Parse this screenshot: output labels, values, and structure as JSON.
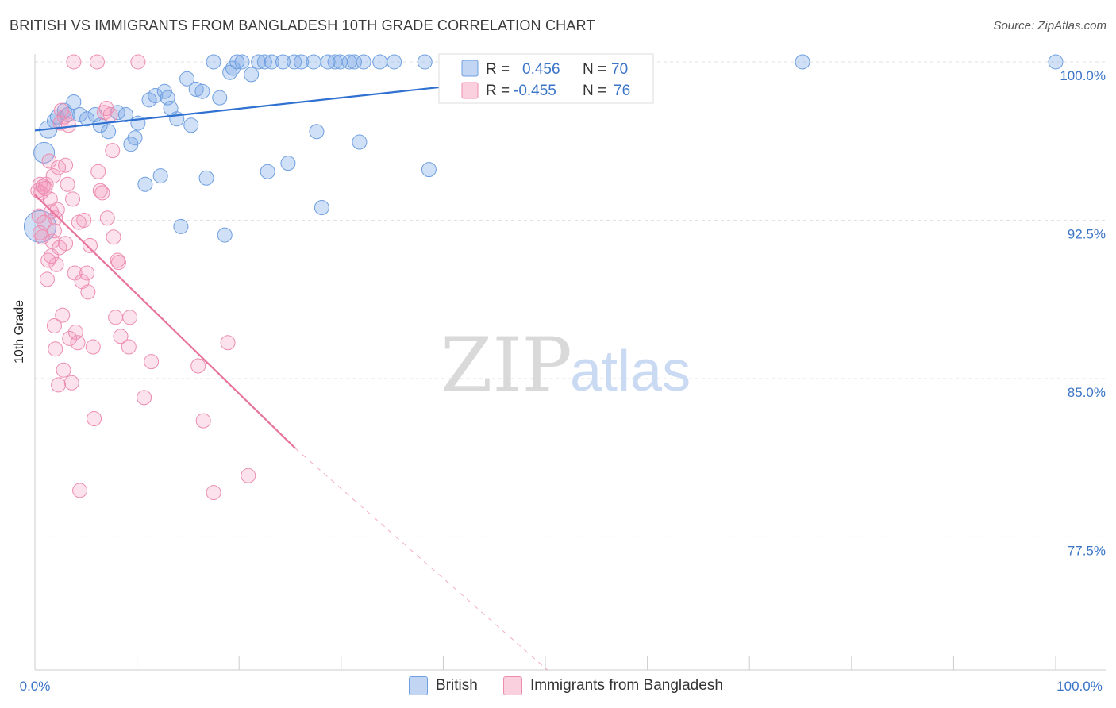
{
  "title": "BRITISH VS IMMIGRANTS FROM BANGLADESH 10TH GRADE CORRELATION CHART",
  "source": "Source: ZipAtlas.com",
  "watermark": {
    "zip": "ZIP",
    "atlas": "atlas"
  },
  "colors": {
    "british_fill": "rgba(120,165,230,0.35)",
    "british_stroke": "#6f9fe0",
    "british_line": "#2f70d0",
    "bangladesh_fill": "rgba(245,150,185,0.28)",
    "bangladesh_stroke": "#ec8db0",
    "bangladesh_line": "#e8749c",
    "tick_label": "#3b75c7",
    "grid": "#e2e2e2"
  },
  "legend_top": [
    {
      "r_label": "R =",
      "r_value": "0.456",
      "n_label": "N =",
      "n_value": "70"
    },
    {
      "r_label": "R =",
      "r_value": "-0.455",
      "n_label": "N =",
      "n_value": "76"
    }
  ],
  "legend_bottom": [
    "British",
    "Immigrants from Bangladesh"
  ],
  "chart_data": {
    "type": "scatter",
    "title": "BRITISH VS IMMIGRANTS FROM BANGLADESH 10TH GRADE CORRELATION CHART",
    "xlabel": "",
    "ylabel": "10th Grade",
    "xlim": [
      0,
      100
    ],
    "ylim": [
      71.2,
      100.6
    ],
    "x_tick_labels": [
      "0.0%",
      "100.0%"
    ],
    "y_ticks": [
      77.5,
      85.0,
      92.5,
      100.0
    ],
    "y_tick_labels": [
      "77.5%",
      "85.0%",
      "92.5%",
      "100.0%"
    ],
    "grid": true,
    "series": [
      {
        "name": "British",
        "r": 0.456,
        "n": 70,
        "trend": {
          "x": [
            0,
            60
          ],
          "y": [
            96.75,
            99.85
          ]
        },
        "points": [
          [
            0.9,
            95.7
          ],
          [
            0.5,
            92.2
          ],
          [
            1.3,
            96.8
          ],
          [
            1.9,
            97.2
          ],
          [
            2.2,
            97.4
          ],
          [
            2.9,
            97.7
          ],
          [
            3.8,
            98.1
          ],
          [
            3.2,
            97.5
          ],
          [
            4.4,
            97.5
          ],
          [
            5.1,
            97.3
          ],
          [
            5.9,
            97.5
          ],
          [
            6.4,
            97.0
          ],
          [
            7.2,
            96.7
          ],
          [
            8.1,
            97.6
          ],
          [
            8.9,
            97.5
          ],
          [
            9.8,
            96.4
          ],
          [
            9.4,
            96.1
          ],
          [
            10.1,
            97.1
          ],
          [
            10.8,
            94.2
          ],
          [
            11.2,
            98.2
          ],
          [
            11.8,
            98.4
          ],
          [
            12.3,
            94.6
          ],
          [
            12.7,
            98.6
          ],
          [
            13.0,
            98.3
          ],
          [
            13.3,
            97.8
          ],
          [
            13.9,
            97.3
          ],
          [
            14.3,
            92.2
          ],
          [
            14.9,
            99.2
          ],
          [
            15.3,
            97.0
          ],
          [
            15.8,
            98.7
          ],
          [
            16.4,
            98.6
          ],
          [
            16.8,
            94.5
          ],
          [
            17.5,
            100.0
          ],
          [
            18.1,
            98.3
          ],
          [
            18.6,
            91.8
          ],
          [
            19.1,
            99.5
          ],
          [
            19.4,
            99.7
          ],
          [
            19.8,
            100.0
          ],
          [
            20.3,
            100.0
          ],
          [
            21.2,
            99.4
          ],
          [
            21.9,
            100.0
          ],
          [
            22.5,
            100.0
          ],
          [
            23.2,
            100.0
          ],
          [
            22.8,
            94.8
          ],
          [
            24.3,
            100.0
          ],
          [
            24.8,
            95.2
          ],
          [
            25.4,
            100.0
          ],
          [
            26.1,
            100.0
          ],
          [
            27.3,
            100.0
          ],
          [
            27.6,
            96.7
          ],
          [
            28.1,
            93.1
          ],
          [
            28.7,
            100.0
          ],
          [
            29.4,
            100.0
          ],
          [
            29.9,
            100.0
          ],
          [
            30.8,
            100.0
          ],
          [
            31.3,
            100.0
          ],
          [
            31.8,
            96.2
          ],
          [
            32.2,
            100.0
          ],
          [
            33.8,
            100.0
          ],
          [
            35.2,
            100.0
          ],
          [
            38.2,
            100.0
          ],
          [
            38.6,
            94.9
          ],
          [
            41.4,
            100.0
          ],
          [
            44.3,
            100.0
          ],
          [
            47.6,
            100.0
          ],
          [
            48.8,
            100.0
          ],
          [
            50.1,
            100.0
          ],
          [
            50.9,
            100.0
          ],
          [
            75.2,
            100.0
          ],
          [
            100.0,
            100.0
          ]
        ],
        "sizes": [
          26,
          40,
          22,
          18,
          18,
          18,
          18,
          18,
          18,
          18,
          18,
          18,
          18,
          18,
          18,
          18,
          18,
          18,
          18,
          18,
          18,
          18,
          18,
          18,
          18,
          18,
          18,
          18,
          18,
          18,
          18,
          18,
          18,
          18,
          18,
          18,
          18,
          18,
          18,
          18,
          18,
          18,
          18,
          18,
          18,
          18,
          18,
          18,
          18,
          18,
          18,
          18,
          18,
          18,
          18,
          18,
          18,
          18,
          18,
          18,
          18,
          18,
          18,
          18,
          18,
          18,
          18,
          18,
          18,
          18
        ]
      },
      {
        "name": "Immigrants from Bangladesh",
        "r": -0.455,
        "n": 76,
        "trend": {
          "x": [
            0,
            25.5
          ],
          "y": [
            93.7,
            81.7
          ]
        },
        "trend_dashed": {
          "x": [
            25.5,
            50.2
          ],
          "y": [
            81.7,
            71.2
          ]
        },
        "points": [
          [
            0.3,
            93.9
          ],
          [
            0.4,
            92.7
          ],
          [
            0.5,
            94.2
          ],
          [
            0.6,
            93.8
          ],
          [
            0.7,
            91.7
          ],
          [
            0.8,
            94.1
          ],
          [
            0.9,
            92.4
          ],
          [
            1.1,
            94.2
          ],
          [
            1.2,
            89.7
          ],
          [
            1.3,
            90.6
          ],
          [
            1.4,
            95.3
          ],
          [
            1.5,
            93.5
          ],
          [
            1.6,
            92.9
          ],
          [
            1.7,
            91.5
          ],
          [
            1.8,
            94.6
          ],
          [
            1.9,
            87.5
          ],
          [
            2.0,
            92.6
          ],
          [
            2.1,
            90.4
          ],
          [
            2.2,
            93.0
          ],
          [
            2.3,
            95.0
          ],
          [
            2.3,
            84.7
          ],
          [
            2.4,
            91.2
          ],
          [
            2.5,
            97.1
          ],
          [
            2.6,
            97.7
          ],
          [
            2.7,
            88.0
          ],
          [
            2.8,
            85.4
          ],
          [
            2.9,
            97.4
          ],
          [
            3.0,
            95.1
          ],
          [
            3.0,
            91.4
          ],
          [
            3.2,
            94.2
          ],
          [
            3.4,
            86.9
          ],
          [
            3.6,
            84.8
          ],
          [
            3.7,
            93.5
          ],
          [
            3.9,
            90.0
          ],
          [
            4.0,
            87.2
          ],
          [
            4.2,
            86.7
          ],
          [
            4.3,
            92.4
          ],
          [
            4.4,
            79.7
          ],
          [
            4.6,
            89.6
          ],
          [
            4.8,
            92.5
          ],
          [
            5.1,
            90.0
          ],
          [
            5.4,
            91.3
          ],
          [
            5.7,
            86.5
          ],
          [
            5.8,
            83.1
          ],
          [
            6.2,
            94.8
          ],
          [
            6.4,
            93.9
          ],
          [
            6.6,
            93.8
          ],
          [
            6.8,
            97.6
          ],
          [
            7.0,
            97.8
          ],
          [
            7.1,
            92.6
          ],
          [
            7.4,
            97.5
          ],
          [
            7.6,
            95.8
          ],
          [
            7.7,
            91.7
          ],
          [
            7.9,
            87.9
          ],
          [
            8.1,
            90.6
          ],
          [
            8.2,
            90.5
          ],
          [
            8.4,
            87.0
          ],
          [
            9.2,
            86.5
          ],
          [
            9.3,
            87.9
          ],
          [
            10.7,
            84.1
          ],
          [
            11.4,
            85.8
          ],
          [
            16.0,
            85.6
          ],
          [
            16.5,
            83.0
          ],
          [
            17.5,
            79.6
          ],
          [
            18.9,
            86.7
          ],
          [
            20.9,
            80.4
          ],
          [
            3.8,
            100.0
          ],
          [
            6.1,
            100.0
          ],
          [
            10.1,
            100.0
          ],
          [
            0.5,
            91.9
          ],
          [
            1.0,
            94.0
          ],
          [
            2.0,
            86.4
          ],
          [
            1.6,
            90.8
          ],
          [
            5.2,
            89.1
          ],
          [
            3.3,
            97.0
          ],
          [
            1.9,
            92.0
          ]
        ],
        "sizes": [
          18,
          18,
          18,
          18,
          18,
          18,
          18,
          18,
          18,
          18,
          18,
          18,
          18,
          18,
          18,
          18,
          18,
          18,
          18,
          18,
          18,
          18,
          18,
          18,
          18,
          18,
          18,
          18,
          18,
          18,
          18,
          18,
          18,
          18,
          18,
          18,
          18,
          18,
          18,
          18,
          18,
          18,
          18,
          18,
          18,
          18,
          18,
          18,
          18,
          18,
          18,
          18,
          18,
          18,
          18,
          18,
          18,
          18,
          18,
          18,
          18,
          18,
          18,
          18,
          18,
          18,
          18,
          18,
          18,
          18,
          18,
          18,
          18,
          18,
          18,
          18
        ]
      }
    ]
  }
}
